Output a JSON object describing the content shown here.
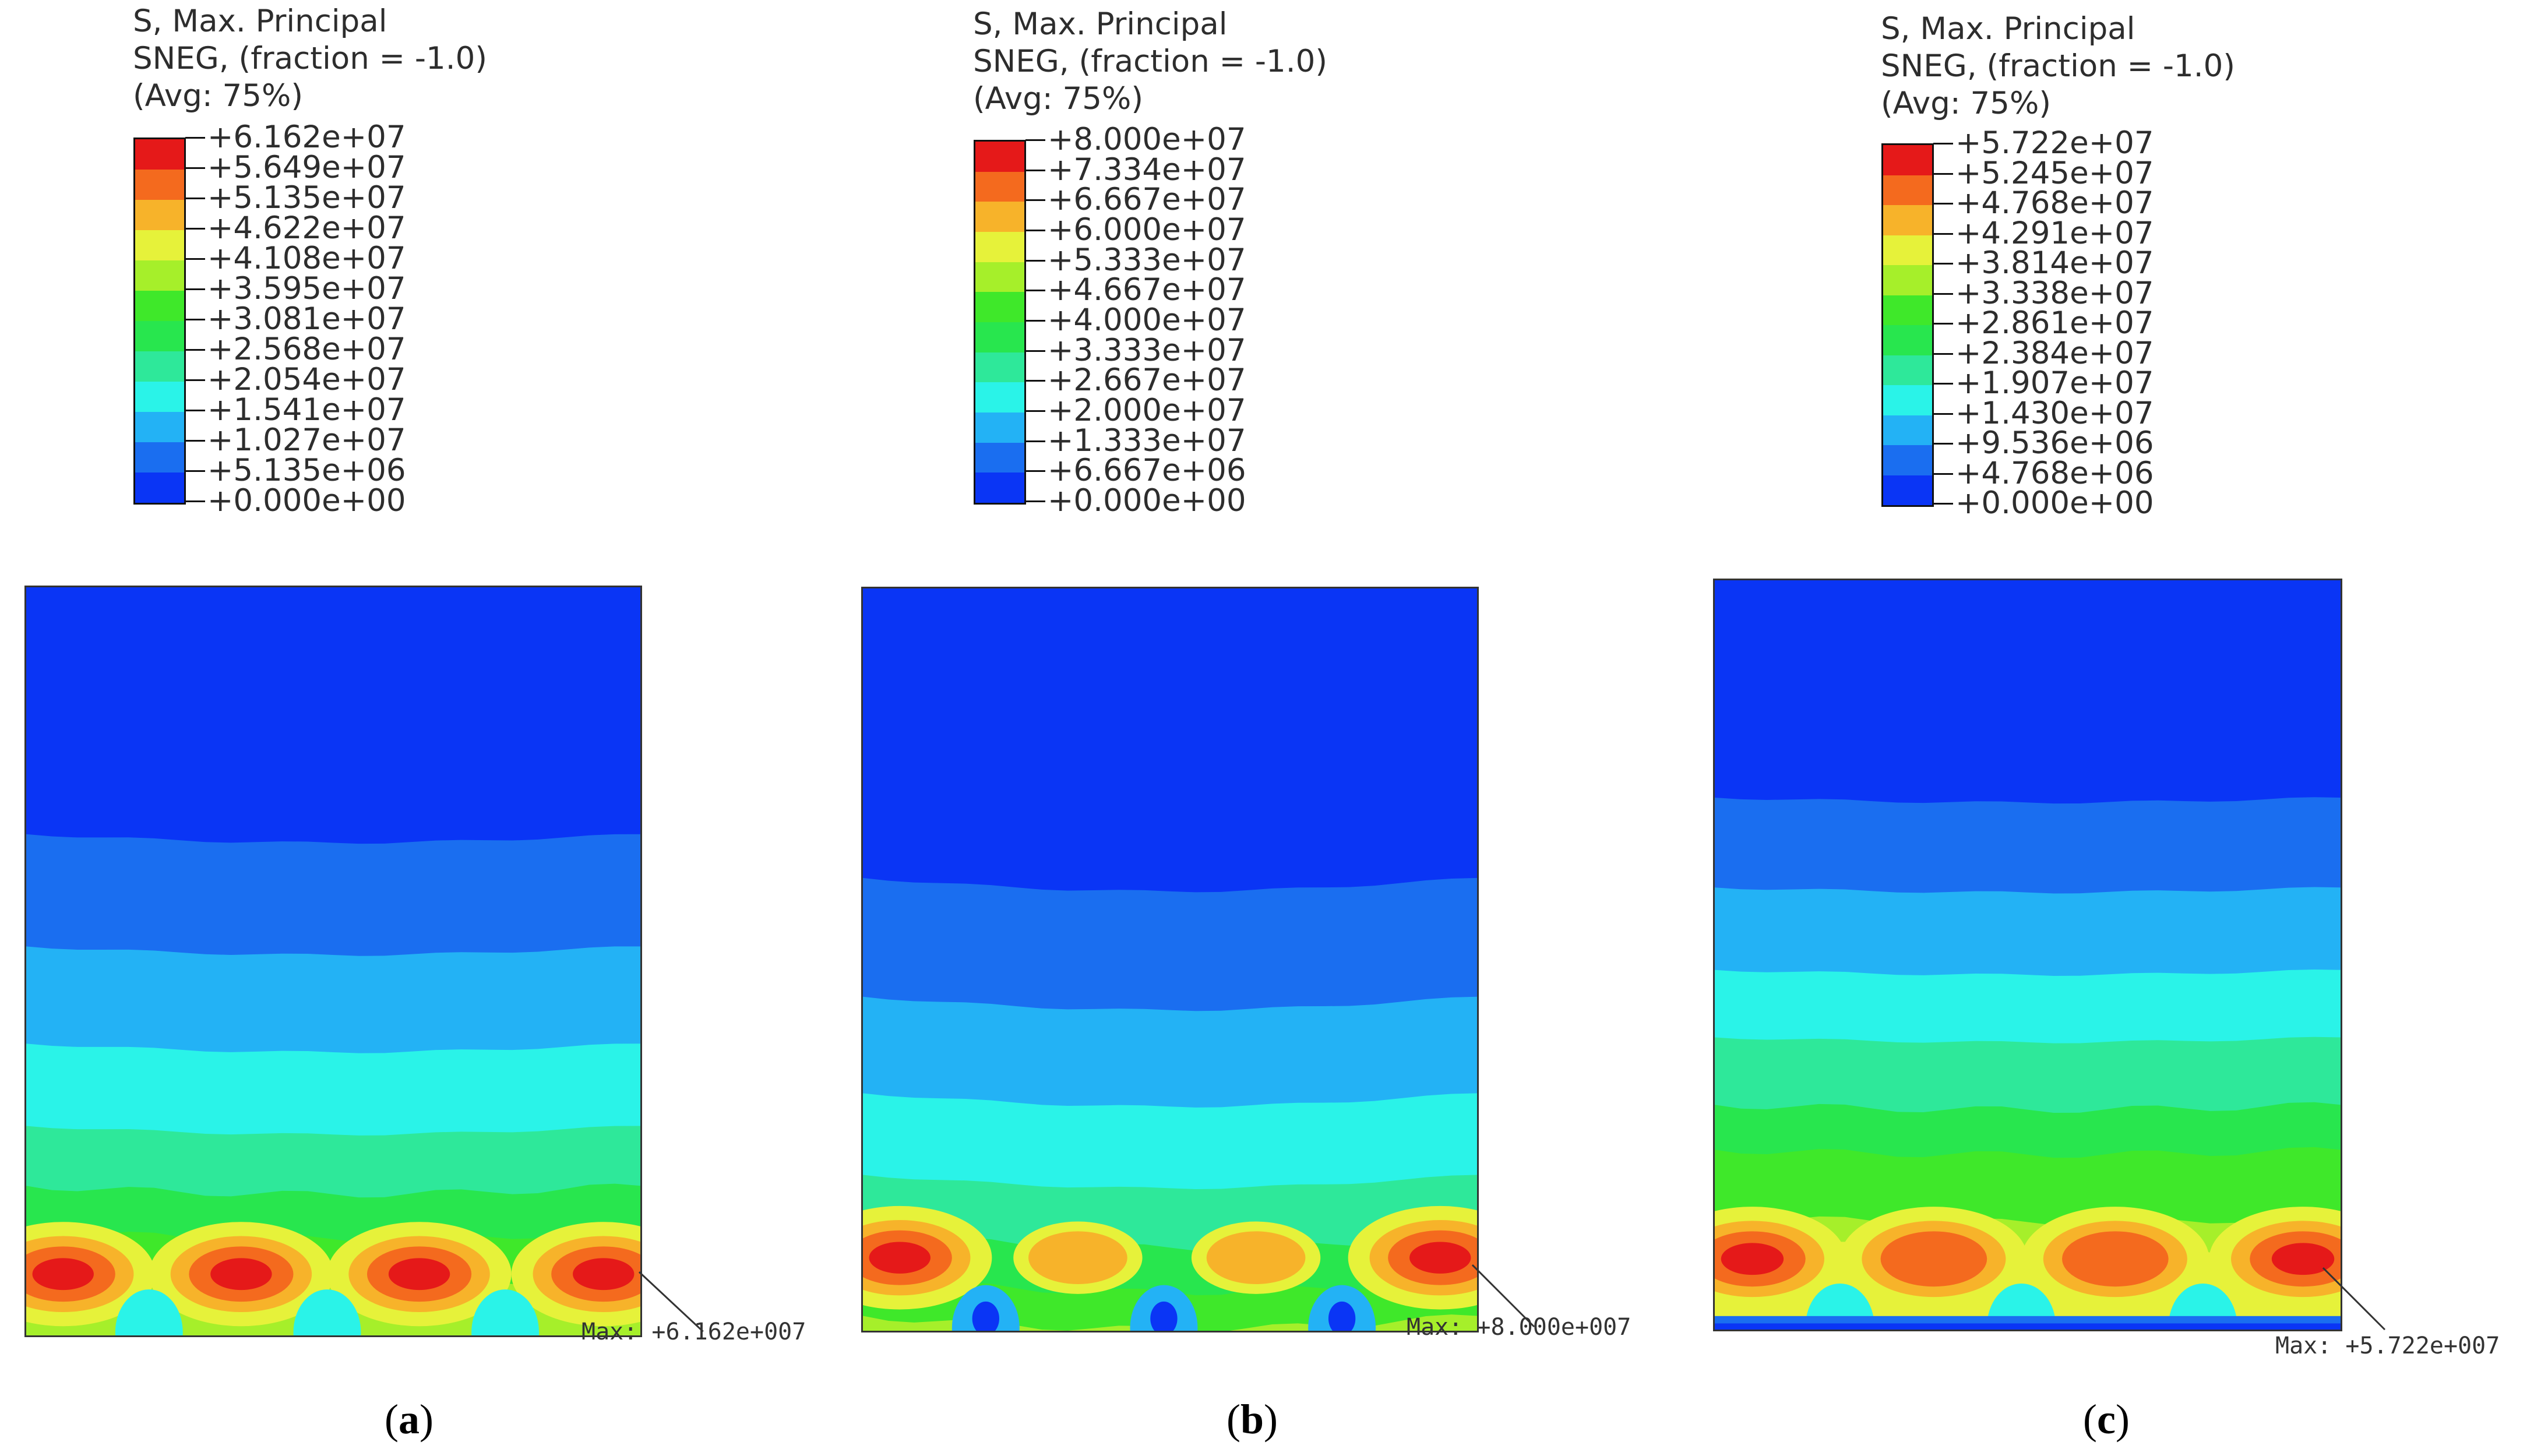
{
  "colors": {
    "levels": [
      "#0a35f5",
      "#1a6ef0",
      "#23b2f5",
      "#2af3e8",
      "#2ee89a",
      "#28e64e",
      "#3fe82a",
      "#a6ef2a",
      "#e6f23a",
      "#f7b32a",
      "#f46a1e",
      "#e51919"
    ]
  },
  "panels": [
    {
      "id": "a",
      "title": "S, Max. Principal\nSNEG, (fraction = -1.0)\n(Avg: 75%)",
      "legend_values": [
        "+6.162e+07",
        "+5.649e+07",
        "+5.135e+07",
        "+4.622e+07",
        "+4.108e+07",
        "+3.595e+07",
        "+3.081e+07",
        "+2.568e+07",
        "+2.054e+07",
        "+1.541e+07",
        "+1.027e+07",
        "+5.135e+06",
        "+0.000e+00"
      ],
      "max_label": "Max: +6.162e+007",
      "caption_letter": "a",
      "hotspots": 4
    },
    {
      "id": "b",
      "title": "S, Max. Principal\nSNEG, (fraction = -1.0)\n(Avg: 75%)",
      "legend_values": [
        "+8.000e+07",
        "+7.334e+07",
        "+6.667e+07",
        "+6.000e+07",
        "+5.333e+07",
        "+4.667e+07",
        "+4.000e+07",
        "+3.333e+07",
        "+2.667e+07",
        "+2.000e+07",
        "+1.333e+07",
        "+6.667e+06",
        "+0.000e+00"
      ],
      "max_label": "Max: +8.000e+007",
      "caption_letter": "b",
      "hotspots": 4
    },
    {
      "id": "c",
      "title": "S, Max. Principal\nSNEG, (fraction = -1.0)\n(Avg: 75%)",
      "legend_values": [
        "+5.722e+07",
        "+5.245e+07",
        "+4.768e+07",
        "+4.291e+07",
        "+3.814e+07",
        "+3.338e+07",
        "+2.861e+07",
        "+2.384e+07",
        "+1.907e+07",
        "+1.430e+07",
        "+9.536e+06",
        "+4.768e+06",
        "+0.000e+00"
      ],
      "max_label": "Max: +5.722e+007",
      "caption_letter": "c",
      "hotspots": 4
    }
  ]
}
